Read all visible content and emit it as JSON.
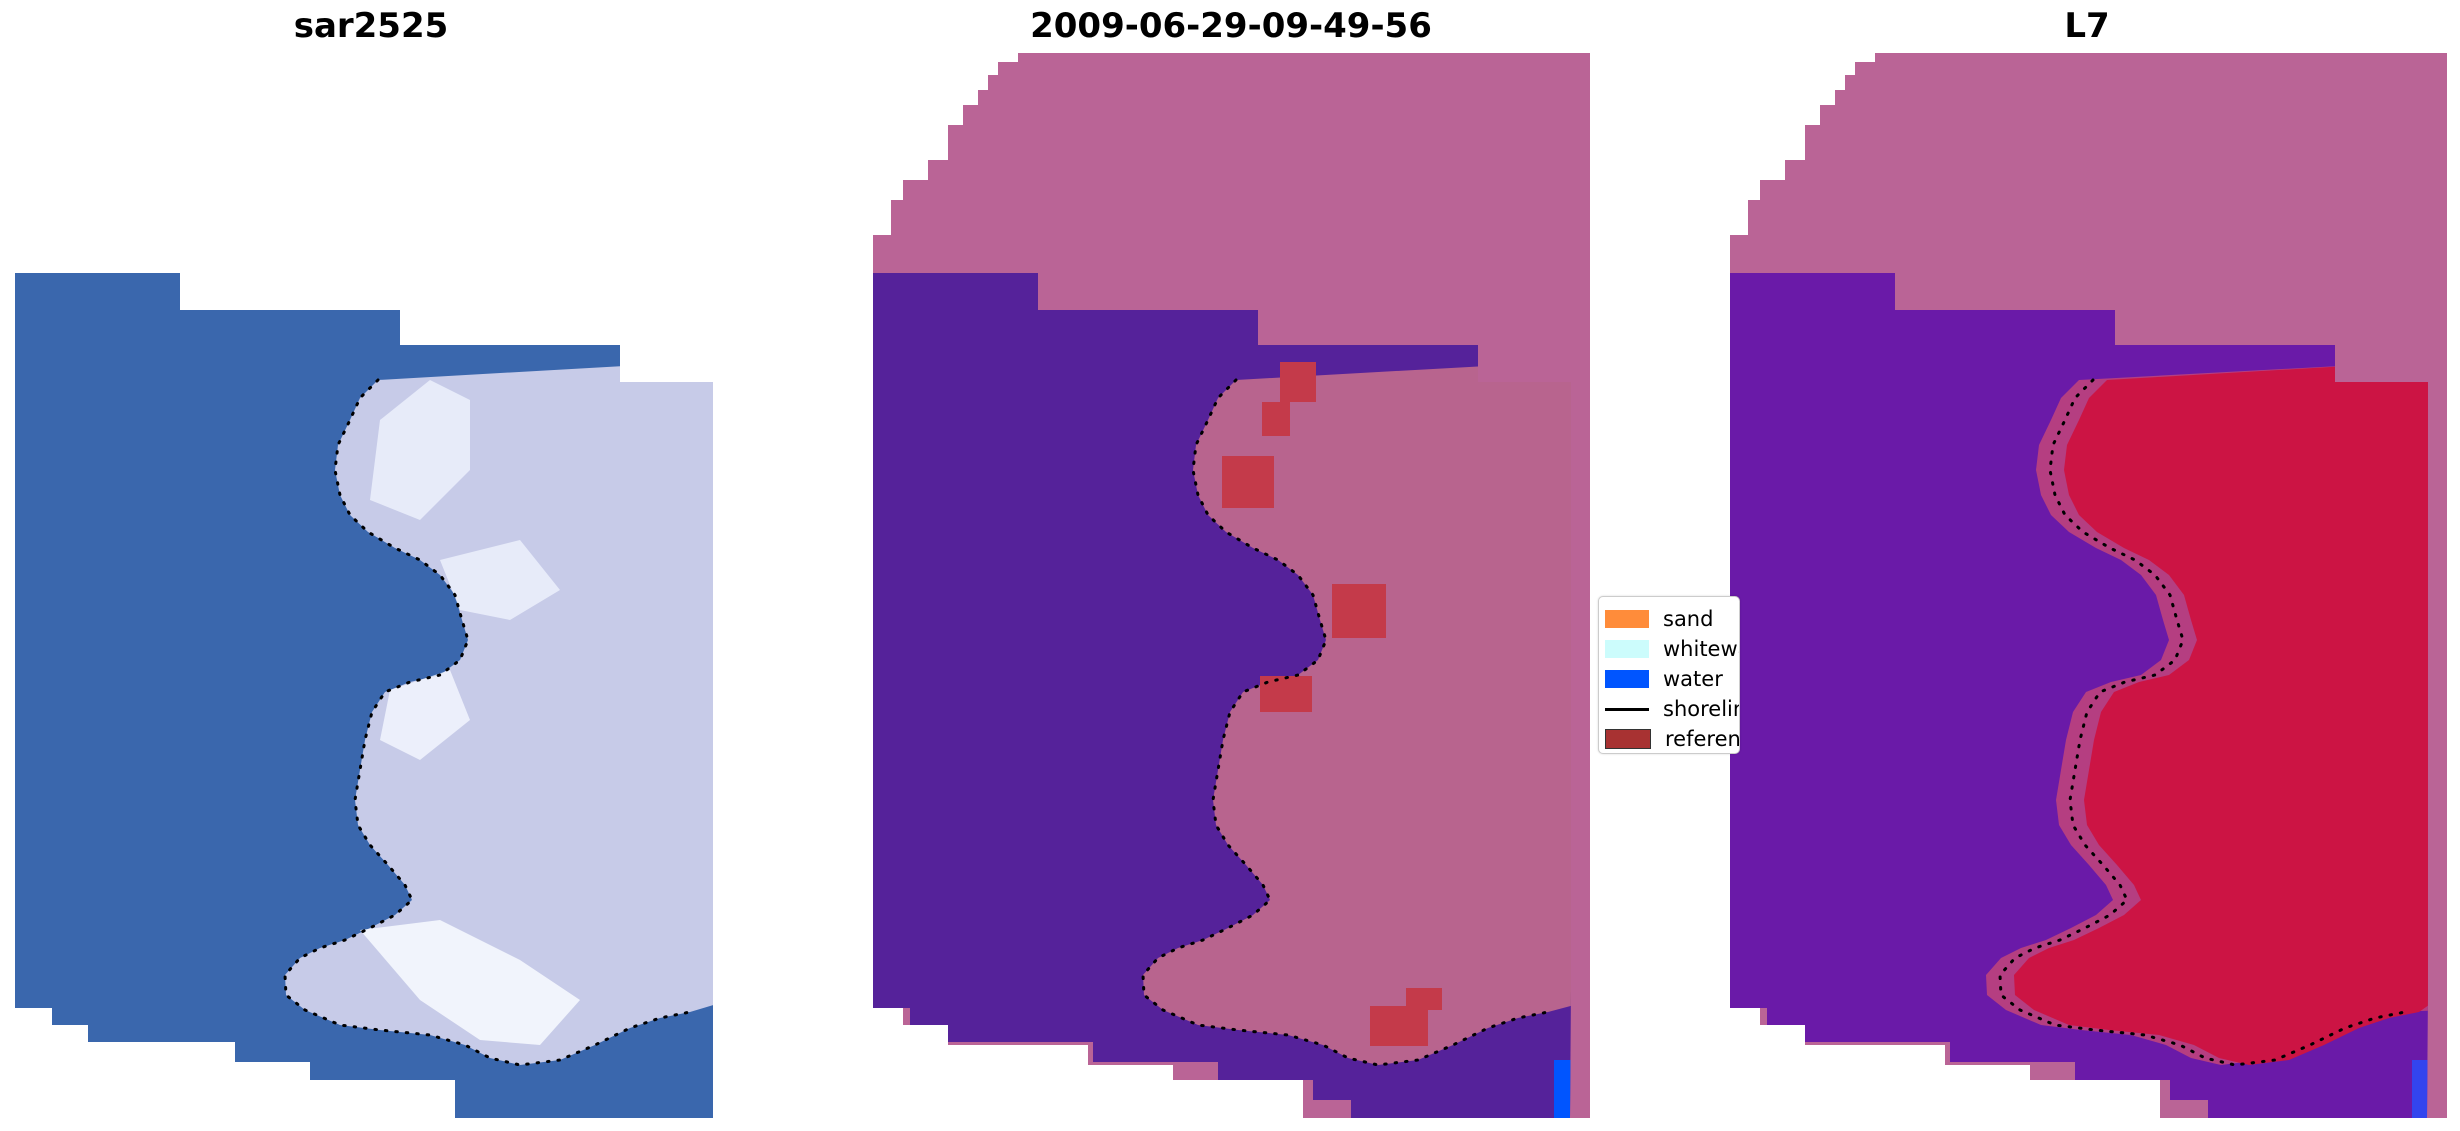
{
  "panels": [
    {
      "title": "sar2525"
    },
    {
      "title": "2009-06-29-09-49-56"
    },
    {
      "title": "L7"
    }
  ],
  "legend": {
    "items": [
      {
        "label": "sand",
        "color": "#ff8c3a",
        "kind": "patch"
      },
      {
        "label": "whitewater",
        "color": "#ccfcfc",
        "kind": "patch"
      },
      {
        "label": "water",
        "color": "#0055ff",
        "kind": "patch"
      },
      {
        "label": "shoreline",
        "color": "#000000",
        "kind": "line"
      },
      {
        "label": "reference",
        "color": "#a83232",
        "kind": "patch"
      }
    ]
  },
  "colors": {
    "ocean_rgb": "#3a67ad",
    "land_rgb": "#c7cbe8",
    "nodata": "#ba6496",
    "water_class": "#55229a",
    "land_class": "#b8648e",
    "reference_class": "#c43a4a",
    "water_index": "#6a1aa8",
    "land_index": "#cc1444",
    "shoreline": "#000000"
  }
}
